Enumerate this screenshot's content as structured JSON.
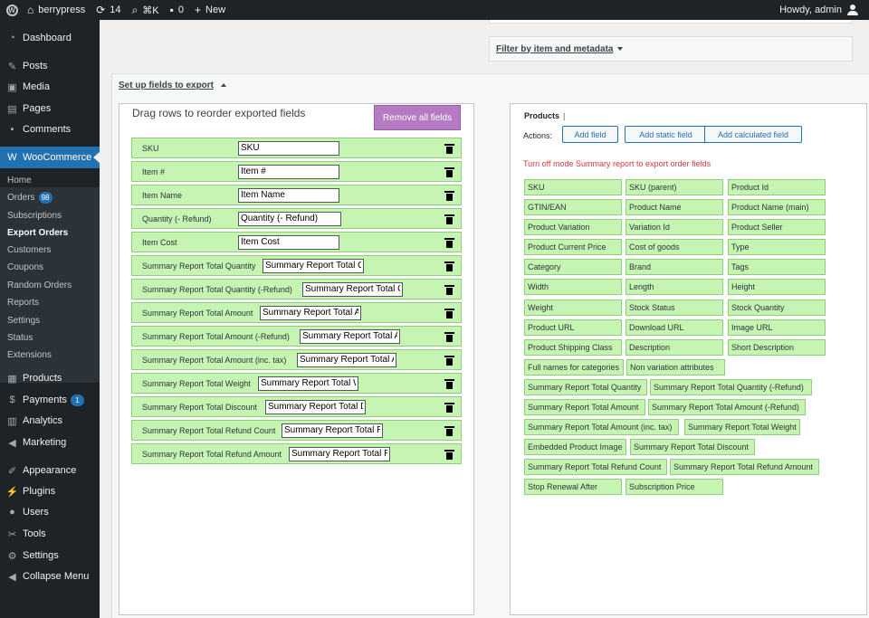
{
  "adminbar": {
    "site_name": "berrypress",
    "updates_count": "14",
    "shortcut": "⌘K",
    "comments_count": "0",
    "new_label": "New",
    "howdy": "Howdy, admin"
  },
  "sidebar": {
    "dashboard": "Dashboard",
    "posts": "Posts",
    "media": "Media",
    "pages": "Pages",
    "comments": "Comments",
    "woocommerce": "WooCommerce",
    "sub": {
      "home": "Home",
      "orders": "Orders",
      "orders_badge": "98",
      "subscriptions": "Subscriptions",
      "export_orders": "Export Orders",
      "customers": "Customers",
      "coupons": "Coupons",
      "random_orders": "Random Orders",
      "reports": "Reports",
      "settings": "Settings",
      "status": "Status",
      "extensions": "Extensions"
    },
    "products": "Products",
    "payments": "Payments",
    "payments_badge": "1",
    "analytics": "Analytics",
    "marketing": "Marketing",
    "appearance": "Appearance",
    "plugins": "Plugins",
    "users": "Users",
    "tools": "Tools",
    "settings": "Settings",
    "collapse": "Collapse Menu"
  },
  "filter_bar": {
    "label": "Filter by item and metadata"
  },
  "setup": {
    "title": "Set up fields to export",
    "drag_title": "Drag rows to reorder exported fields",
    "remove_all": "Remove all fields",
    "rows": [
      {
        "label": "SKU",
        "value": "SKU"
      },
      {
        "label": "Item #",
        "value": "Item #"
      },
      {
        "label": "Item Name",
        "value": "Item Name"
      },
      {
        "label": "Quantity (- Refund)",
        "value": "Quantity (- Refund)"
      },
      {
        "label": "Item Cost",
        "value": "Item Cost"
      },
      {
        "label": "Summary Report Total Quantity",
        "value": "Summary Report Total Q"
      },
      {
        "label": "Summary Report Total Quantity (-Refund)",
        "value": "Summary Report Total C"
      },
      {
        "label": "Summary Report Total Amount",
        "value": "Summary Report Total A"
      },
      {
        "label": "Summary Report Total Amount (-Refund)",
        "value": "Summary Report Total A"
      },
      {
        "label": "Summary Report Total Amount (inc. tax)",
        "value": "Summary Report Total A"
      },
      {
        "label": "Summary Report Total Weight",
        "value": "Summary Report Total W"
      },
      {
        "label": "Summary Report Total Discount",
        "value": "Summary Report Total D"
      },
      {
        "label": "Summary Report Total Refund Count",
        "value": "Summary Report Total R"
      },
      {
        "label": "Summary Report Total Refund Amount",
        "value": "Summary Report Total R"
      }
    ]
  },
  "products_panel": {
    "title": "Products",
    "separator": "|",
    "actions_label": "Actions:",
    "add_field": "Add field",
    "add_static": "Add static field",
    "add_calculated": "Add calculated field",
    "warning": "Turn off mode Summary report to export order fields",
    "chips": [
      "SKU",
      "SKU (parent)",
      "Product Id",
      "GTIN/EAN",
      "Product Name",
      "Product Name (main)",
      "Product Variation",
      "Variation Id",
      "Product Seller",
      "Product Current Price",
      "Cost of goods",
      "Type",
      "Category",
      "Brand",
      "Tags",
      "Width",
      "Length",
      "Height",
      "Weight",
      "Stock Status",
      "Stock Quantity",
      "Product URL",
      "Download URL",
      "Image URL",
      "Product Shipping Class",
      "Description",
      "Short Description",
      "Full names for categories",
      "Non variation attributes",
      "Summary Report Total Quantity",
      "Summary Report Total Quantity (-Refund)",
      "Summary Report Total Amount",
      "Summary Report Total Amount (-Refund)",
      "Summary Report Total Amount (inc. tax)",
      "Summary Report Total Weight",
      "Embedded Product Image",
      "Summary Report Total Discount",
      "Summary Report Total Refund Count",
      "Summary Report Total Refund Amount",
      "Stop Renewal After",
      "Subscription Price"
    ]
  }
}
